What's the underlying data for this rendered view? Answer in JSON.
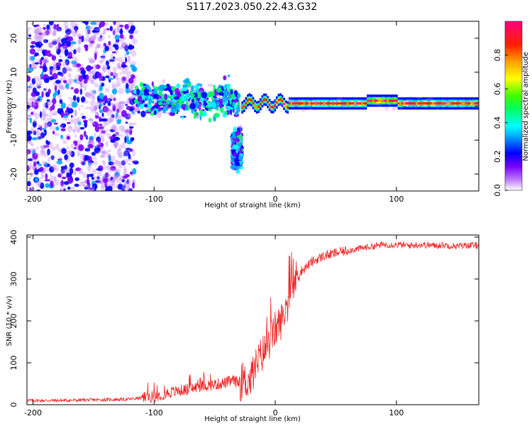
{
  "title": "S117.2023.050.22.43.G32",
  "chart_data": [
    {
      "type": "heatmap",
      "xlabel": "Height of straight line (km)",
      "ylabel": "Frequency (Hz)",
      "xlim": [
        -205,
        168
      ],
      "ylim": [
        -25,
        25
      ],
      "xticks": [
        -200,
        -100,
        0,
        100
      ],
      "yticks": [
        -20,
        -10,
        0,
        10,
        20
      ],
      "colorbar": {
        "label": "Normalized spectral amplitude",
        "range": [
          0,
          1
        ],
        "ticks": [
          "0.0",
          "0.2",
          "0.4",
          "0.6",
          "0.8"
        ],
        "colormap": [
          "#ffffff",
          "#7800ff",
          "#0000ff",
          "#00ffff",
          "#00ff00",
          "#ffff00",
          "#ff8000",
          "#ff0000",
          "#ff0080"
        ]
      },
      "bands": [
        {
          "x": [
            -205,
            -115
          ],
          "y_center": 0,
          "y_spread": 25,
          "amplitude": 0.15,
          "note": "noise"
        },
        {
          "x": [
            -115,
            -30
          ],
          "y_center": 2,
          "y_spread": 8,
          "amplitude": 0.3
        },
        {
          "x": [
            -35,
            -28
          ],
          "y_center": -13,
          "y_spread": 8,
          "amplitude": 0.25
        },
        {
          "x": [
            -28,
            168
          ],
          "y_center": 0.8,
          "y_spread": 1.2,
          "amplitude": 0.85
        }
      ]
    },
    {
      "type": "line",
      "xlabel": "Height of straight line (km)",
      "ylabel": "SNR (10 * v/v)",
      "xlim": [
        -205,
        168
      ],
      "ylim": [
        0,
        405
      ],
      "xticks": [
        -200,
        -100,
        0,
        100
      ],
      "yticks": [
        0,
        100,
        200,
        300,
        400
      ],
      "color": "#ee2222",
      "x": [
        -205,
        -180,
        -160,
        -140,
        -120,
        -100,
        -90,
        -80,
        -70,
        -60,
        -50,
        -40,
        -35,
        -30,
        -25,
        -20,
        -15,
        -10,
        -5,
        0,
        5,
        10,
        15,
        20,
        30,
        40,
        50,
        60,
        70,
        80,
        90,
        100,
        110,
        120,
        130,
        140,
        150,
        160,
        168
      ],
      "y": [
        10,
        10,
        11,
        12,
        13,
        20,
        27,
        33,
        38,
        45,
        48,
        53,
        58,
        52,
        55,
        60,
        100,
        125,
        150,
        180,
        200,
        240,
        290,
        315,
        340,
        355,
        362,
        368,
        373,
        378,
        382,
        382,
        380,
        382,
        380,
        381,
        378,
        381,
        379
      ]
    }
  ]
}
